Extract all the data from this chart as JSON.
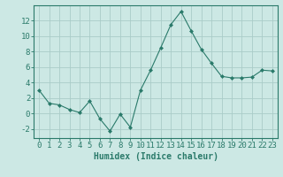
{
  "x": [
    0,
    1,
    2,
    3,
    4,
    5,
    6,
    7,
    8,
    9,
    10,
    11,
    12,
    13,
    14,
    15,
    16,
    17,
    18,
    19,
    20,
    21,
    22,
    23
  ],
  "y": [
    3,
    1.3,
    1.1,
    0.5,
    0.1,
    1.6,
    -0.7,
    -2.3,
    -0.1,
    -1.8,
    3.0,
    5.6,
    8.5,
    11.5,
    13.2,
    10.7,
    8.3,
    6.5,
    4.8,
    4.6,
    4.6,
    4.7,
    5.6,
    5.5
  ],
  "line_color": "#2a7a6a",
  "marker": "D",
  "marker_size": 2.0,
  "bg_color": "#cce8e4",
  "grid_color": "#aaccc8",
  "axis_color": "#2a7a6a",
  "xlabel": "Humidex (Indice chaleur)",
  "xlim": [
    -0.5,
    23.5
  ],
  "ylim": [
    -3.2,
    14.0
  ],
  "yticks": [
    -2,
    0,
    2,
    4,
    6,
    8,
    10,
    12
  ],
  "xticks": [
    0,
    1,
    2,
    3,
    4,
    5,
    6,
    7,
    8,
    9,
    10,
    11,
    12,
    13,
    14,
    15,
    16,
    17,
    18,
    19,
    20,
    21,
    22,
    23
  ],
  "xlabel_fontsize": 7,
  "tick_fontsize": 6.5
}
